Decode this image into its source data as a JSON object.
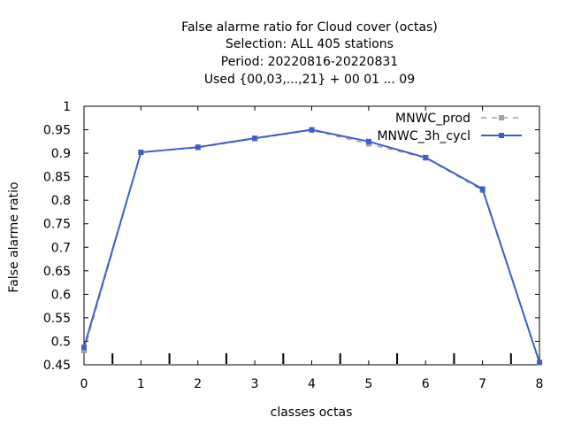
{
  "chart_data": {
    "type": "line",
    "title_lines": [
      "False alarme ratio  for Cloud cover (octas)",
      "Selection: ALL     405 stations",
      "Period: 20220816-20220831",
      "Used {00,03,...,21} + 00 01 ... 09"
    ],
    "xlabel": "classes octas",
    "ylabel": "False alarme ratio",
    "xlim": [
      0,
      8
    ],
    "ylim": [
      0.45,
      1
    ],
    "x_ticks": [
      "0",
      "1",
      "2",
      "3",
      "4",
      "5",
      "6",
      "7",
      "8"
    ],
    "y_ticks": [
      "0.45",
      "0.5",
      "0.55",
      "0.6",
      "0.65",
      "0.7",
      "0.75",
      "0.8",
      "0.85",
      "0.9",
      "0.95",
      "1"
    ],
    "x": [
      0,
      1,
      2,
      3,
      4,
      5,
      6,
      7,
      8
    ],
    "series": [
      {
        "name": "MNWC_prod",
        "values": [
          0.48,
          0.902,
          0.912,
          0.931,
          0.949,
          0.92,
          0.89,
          0.821,
          0.455
        ],
        "color": "#a0a0a0",
        "dash": "dashed"
      },
      {
        "name": "MNWC_3h_cycl",
        "values": [
          0.487,
          0.902,
          0.913,
          0.932,
          0.95,
          0.925,
          0.891,
          0.824,
          0.455
        ],
        "color": "#3a5fcd",
        "dash": "solid"
      }
    ],
    "legend_position": "top-right",
    "grid": false
  }
}
